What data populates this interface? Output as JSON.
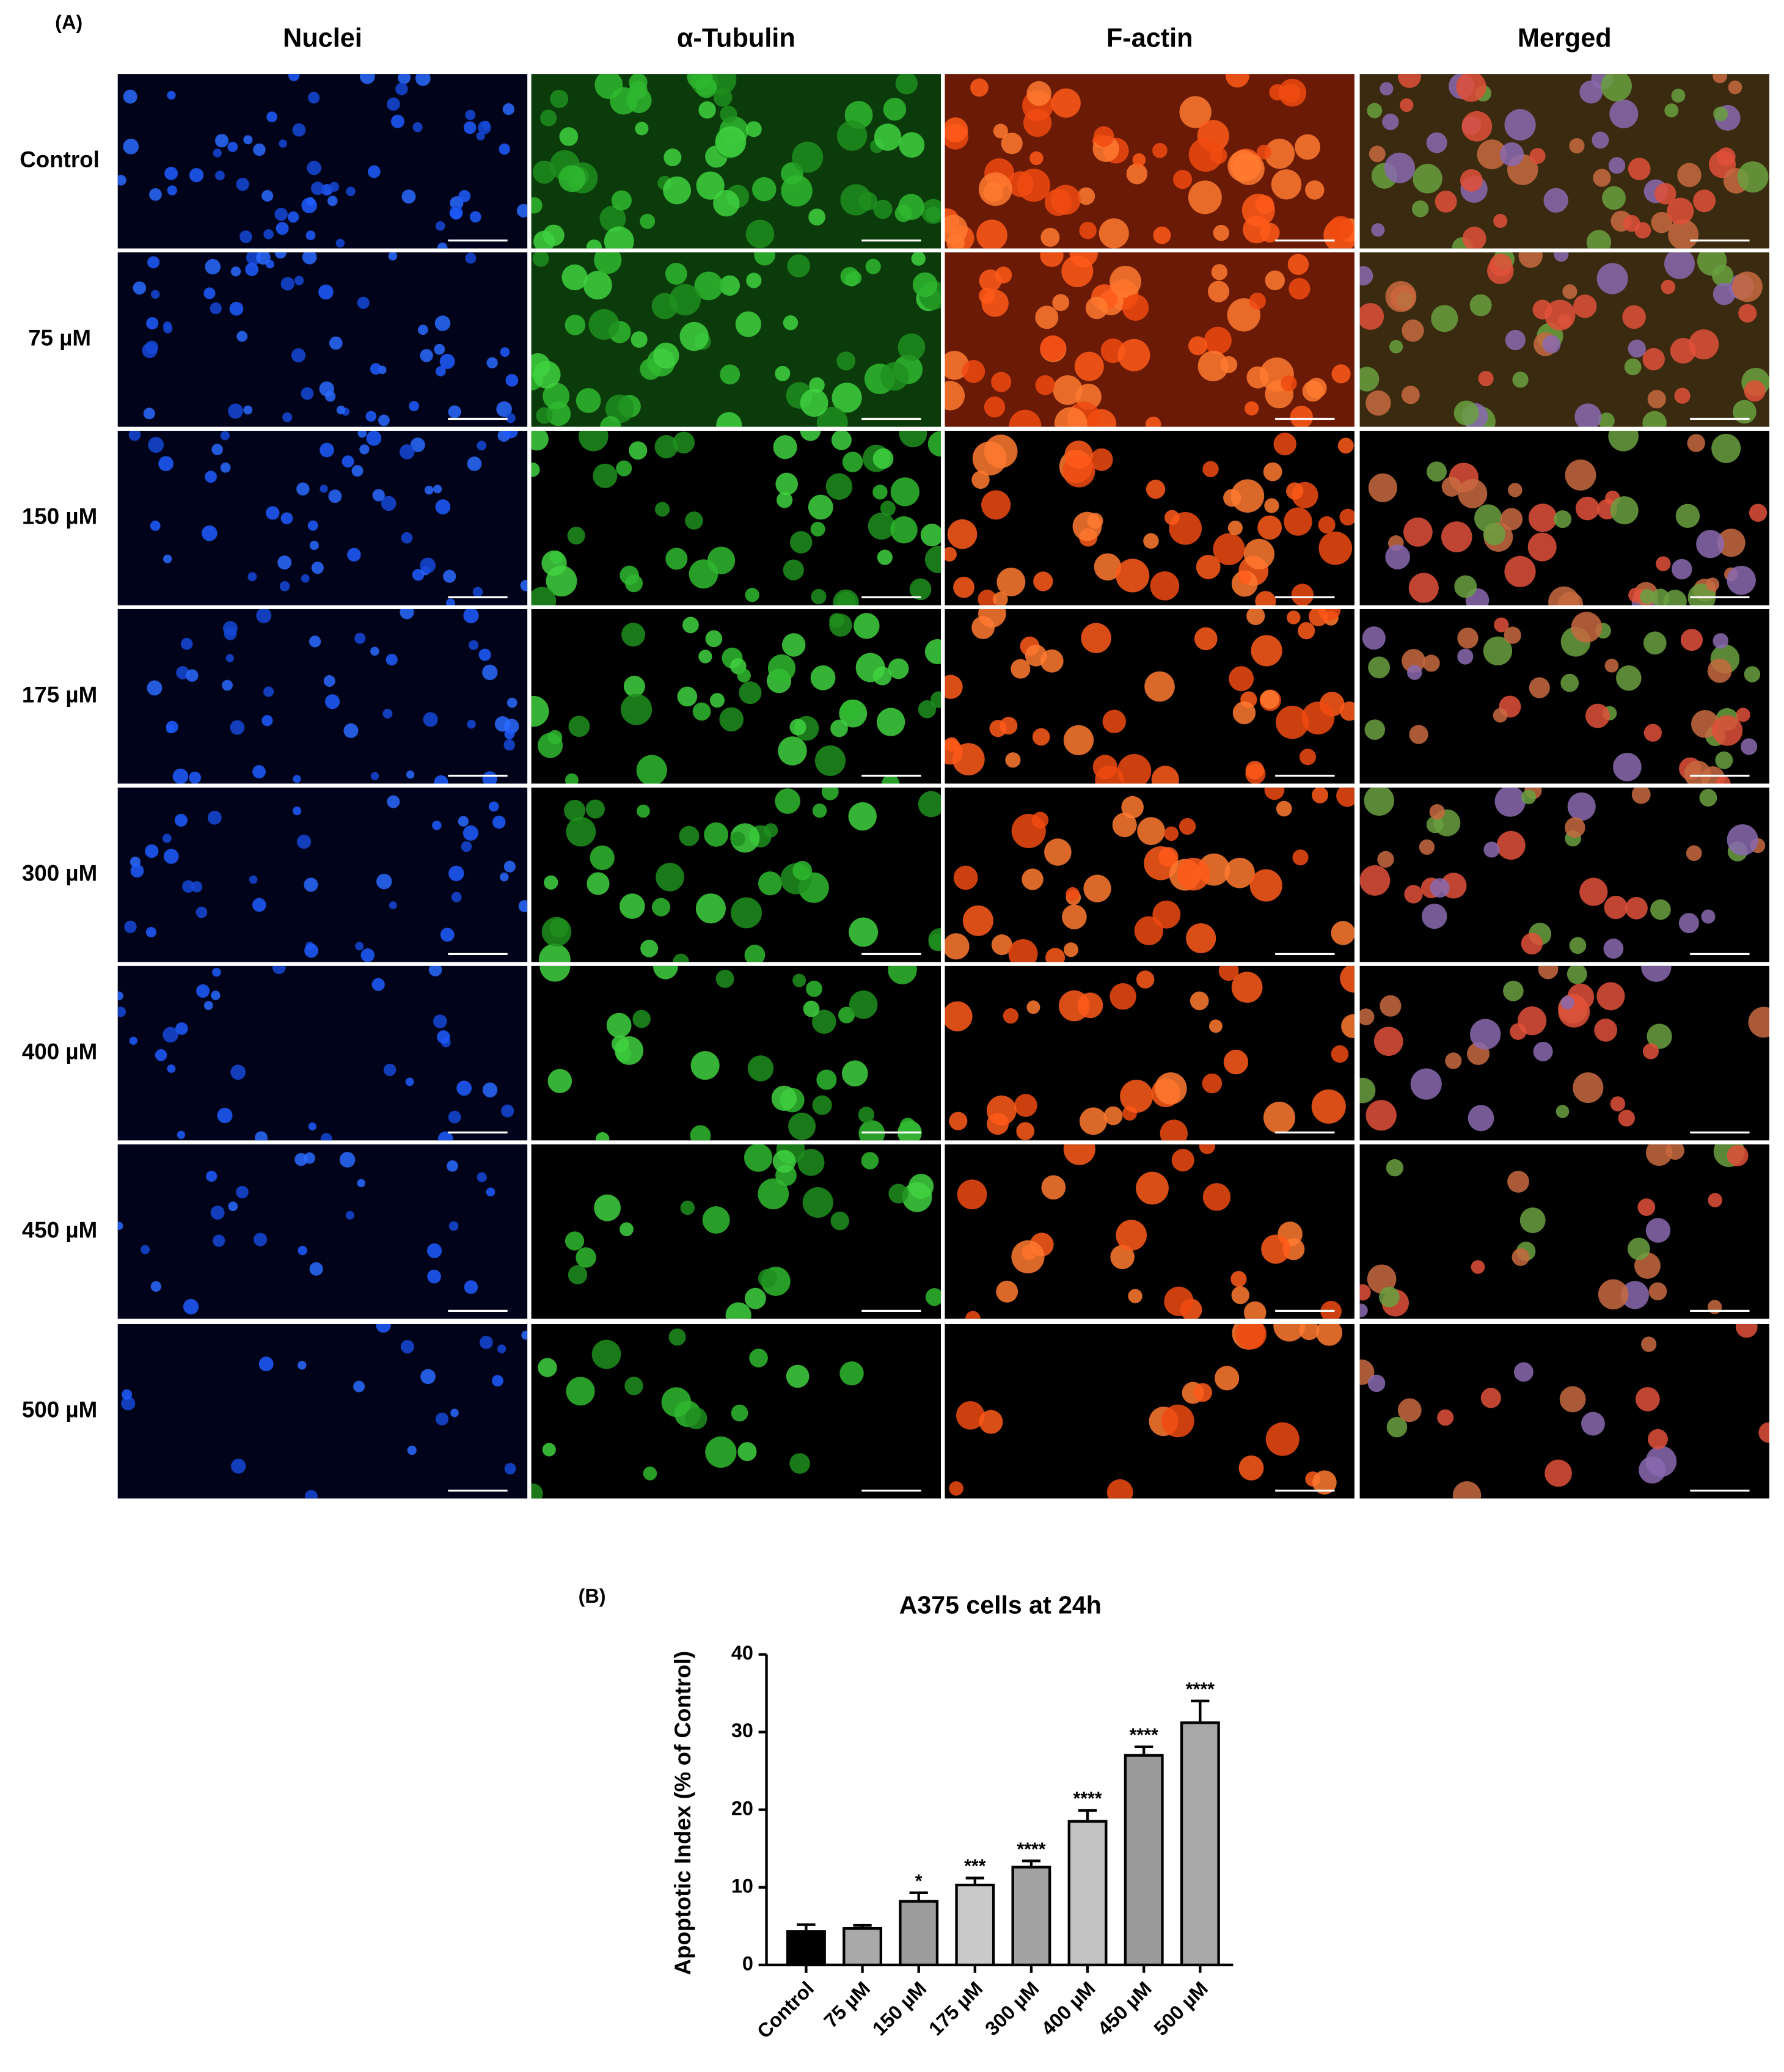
{
  "panel_a": {
    "label": "(A)",
    "columns": [
      "Nuclei",
      "α-Tubulin",
      "F-actin",
      "Merged"
    ],
    "rows": [
      "Control",
      "75 µM",
      "150 µM",
      "175 µM",
      "300 µM",
      "400 µM",
      "450 µM",
      "500  µM"
    ]
  },
  "chart_data": {
    "type": "bar",
    "panel_label": "(B)",
    "title": "A375 cells at 24h",
    "y_label": "Apoptotic Index (% of Control)",
    "categories": [
      "Control",
      "75 µM",
      "150 µM",
      "175 µM",
      "300 µM",
      "400 µM",
      "450 µM",
      "500 µM"
    ],
    "values": [
      4.3,
      4.7,
      8.2,
      10.3,
      12.6,
      18.5,
      27,
      31.2
    ],
    "errors": [
      0.9,
      0.4,
      1.1,
      0.9,
      0.8,
      1.4,
      1.1,
      2.8
    ],
    "significance": [
      null,
      null,
      "*",
      "***",
      "****",
      "****",
      "****",
      "****"
    ],
    "colors": [
      "#000000",
      "#a9a9a9",
      "#9c9c9c",
      "#c9c9c9",
      "#a2a2a2",
      "#c2c2c2",
      "#9a9a9a",
      "#a8a8a8"
    ],
    "ylim": [
      0,
      40
    ],
    "yticks": [
      0,
      10,
      20,
      30,
      40
    ]
  }
}
